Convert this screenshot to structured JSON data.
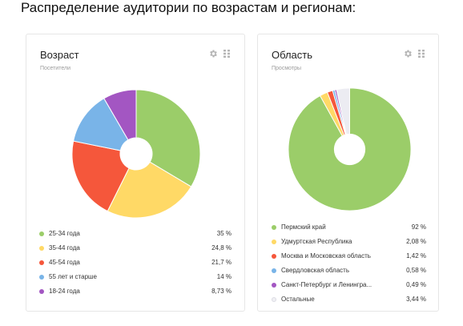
{
  "heading": "Распределение аудитории по возрастам и регионам:",
  "cards": [
    {
      "title": "Возраст",
      "subtitle": "Посетители",
      "chart_data": {
        "type": "pie",
        "categories": [
          "25-34 года",
          "35-44 года",
          "45-54 года",
          "55 лет и старше",
          "18-24 года"
        ],
        "values": [
          35,
          24.8,
          21.7,
          14,
          8.73
        ],
        "colors": [
          "#9bcd69",
          "#ffd966",
          "#f5573b",
          "#79b4e8",
          "#a356c2"
        ]
      },
      "legend": [
        {
          "label": "25-34 года",
          "value": "35 %",
          "color": "#9bcd69"
        },
        {
          "label": "35-44 года",
          "value": "24,8 %",
          "color": "#ffd966"
        },
        {
          "label": "45-54 года",
          "value": "21,7 %",
          "color": "#f5573b"
        },
        {
          "label": "55 лет и старше",
          "value": "14 %",
          "color": "#79b4e8"
        },
        {
          "label": "18-24 года",
          "value": "8,73 %",
          "color": "#a356c2"
        }
      ]
    },
    {
      "title": "Область",
      "subtitle": "Просмотры",
      "chart_data": {
        "type": "pie",
        "categories": [
          "Пермский край",
          "Удмуртская Республика",
          "Москва и Московская область",
          "Свердловская область",
          "Санкт-Петербург и Ленингра...",
          "Остальные"
        ],
        "values": [
          92,
          2.08,
          1.42,
          0.58,
          0.49,
          3.44
        ],
        "colors": [
          "#9bcd69",
          "#ffd966",
          "#f5573b",
          "#79b4e8",
          "#a356c2",
          "#ececf2"
        ]
      },
      "legend": [
        {
          "label": "Пермский край",
          "value": "92 %",
          "color": "#9bcd69"
        },
        {
          "label": "Удмуртская Республика",
          "value": "2,08 %",
          "color": "#ffd966"
        },
        {
          "label": "Москва и Московская область",
          "value": "1,42 %",
          "color": "#f5573b"
        },
        {
          "label": "Свердловская область",
          "value": "0,58 %",
          "color": "#79b4e8"
        },
        {
          "label": "Санкт-Петербург и Ленингра...",
          "value": "0,49 %",
          "color": "#a356c2"
        },
        {
          "label": "Остальные",
          "value": "3,44 %",
          "color": "#f0f0f4"
        }
      ]
    }
  ],
  "icons": {
    "settings": "gear-icon",
    "drag": "drag-handle-icon"
  }
}
